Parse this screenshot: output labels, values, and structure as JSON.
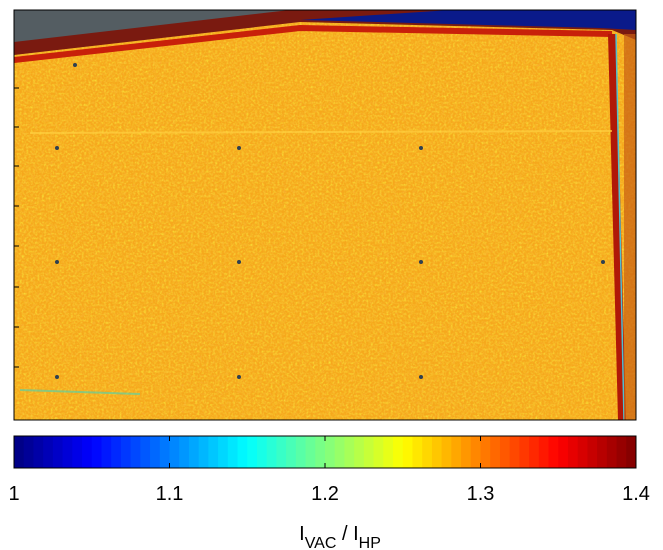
{
  "chart_data": {
    "type": "image",
    "colormap": "jet",
    "clim": [
      1,
      1.4
    ],
    "cticks": [
      1,
      1.1,
      1.2,
      1.3,
      1.4
    ],
    "colorbar_label": [
      {
        "text": "I",
        "sub": "VAC"
      },
      {
        "text": " / I",
        "sub": "HP"
      }
    ]
  }
}
